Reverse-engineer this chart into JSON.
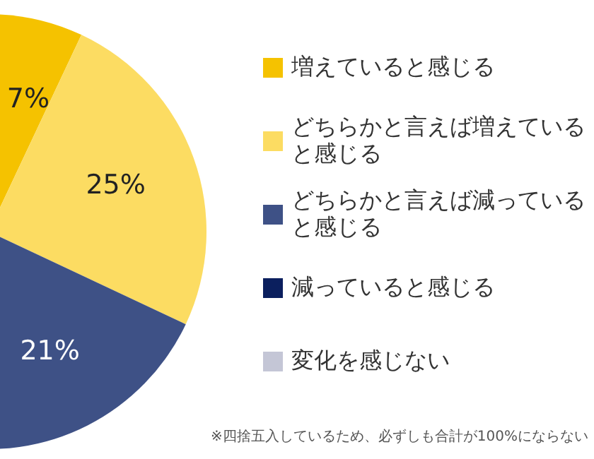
{
  "chart_data": {
    "type": "pie",
    "categories": [
      "増えていると感じる",
      "どちらかと言えば増えていると感じる",
      "どちらかと言えば減っていると感じる",
      "減っていると感じる",
      "変化を感じない"
    ],
    "values": [
      7,
      25,
      21,
      null,
      null
    ],
    "value_labels": [
      "7%",
      "25%",
      "21%",
      null,
      null
    ],
    "colors": [
      "#f5c200",
      "#fcdc62",
      "#3e5186",
      "#0b1f5e",
      "#c4c6d6"
    ],
    "legend": "right",
    "annotations": [
      "※四捨五入しているため、必ずしも合計が100%にならない"
    ]
  }
}
